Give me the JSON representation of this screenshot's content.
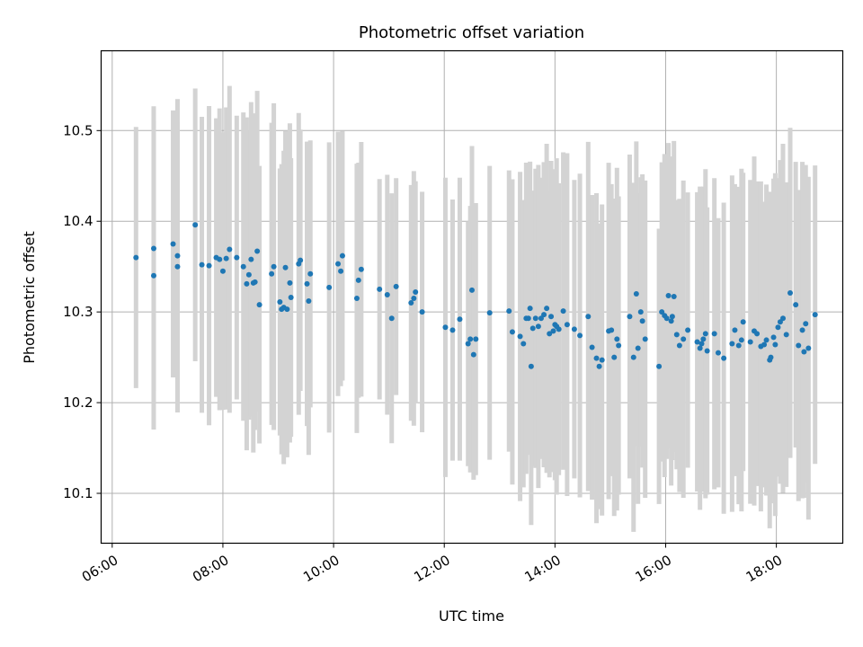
{
  "chart_data": {
    "type": "scatter",
    "title": "Photometric offset variation",
    "xlabel": "UTC time",
    "ylabel": "Photometric offset",
    "x_tick_labels": [
      "06:00",
      "08:00",
      "10:00",
      "12:00",
      "14:00",
      "16:00",
      "18:00"
    ],
    "x_ticks_hours": [
      6,
      8,
      10,
      12,
      14,
      16,
      18
    ],
    "y_ticks": [
      10.1,
      10.2,
      10.3,
      10.4,
      10.5
    ],
    "y_tick_labels": [
      "10.1",
      "10.2",
      "10.3",
      "10.4",
      "10.5"
    ],
    "xlim_hours": [
      5.8,
      19.2
    ],
    "ylim": [
      10.045,
      10.588
    ],
    "grid": true,
    "colors": {
      "points": "#1f77b4",
      "errorbars": "#d3d3d3",
      "grid": "#b0b0b0"
    },
    "series": [
      {
        "x_hours": [
          6.43,
          6.75,
          6.75,
          7.1,
          7.18,
          7.18,
          7.5,
          7.62,
          7.75,
          7.88,
          7.94,
          8.0,
          8.06,
          8.12,
          8.25,
          8.37,
          8.43,
          8.47,
          8.51,
          8.55,
          8.58,
          8.62,
          8.66,
          8.88,
          8.92,
          9.03,
          9.06,
          9.1,
          9.13,
          9.16,
          9.21,
          9.23,
          9.37,
          9.4,
          9.52,
          9.55,
          9.58,
          9.92,
          10.08,
          10.13,
          10.16,
          10.42,
          10.45,
          10.5,
          10.83,
          10.97,
          11.05,
          11.13,
          11.4,
          11.45,
          11.48,
          11.6,
          12.02,
          12.15,
          12.28,
          12.43,
          12.47,
          12.5,
          12.53,
          12.57,
          12.82,
          13.17,
          13.23,
          13.37,
          13.43,
          13.48,
          13.52,
          13.55,
          13.57,
          13.6,
          13.65,
          13.7,
          13.75,
          13.8,
          13.85,
          13.9,
          13.93,
          13.97,
          14.0,
          14.03,
          14.07,
          14.15,
          14.22,
          14.35,
          14.45,
          14.6,
          14.67,
          14.75,
          14.8,
          14.85,
          14.97,
          15.02,
          15.07,
          15.12,
          15.15,
          15.35,
          15.42,
          15.47,
          15.5,
          15.55,
          15.58,
          15.63,
          15.88,
          15.93,
          15.98,
          16.02,
          16.05,
          16.1,
          16.12,
          16.15,
          16.2,
          16.25,
          16.32,
          16.4,
          16.57,
          16.62,
          16.65,
          16.68,
          16.72,
          16.75,
          16.88,
          16.95,
          17.05,
          17.2,
          17.25,
          17.32,
          17.37,
          17.4,
          17.53,
          17.6,
          17.65,
          17.72,
          17.78,
          17.82,
          17.88,
          17.9,
          17.95,
          17.98,
          18.03,
          18.07,
          18.12,
          18.18,
          18.25,
          18.35,
          18.4,
          18.47,
          18.5,
          18.53,
          18.58,
          18.7
        ],
        "y": [
          10.36,
          10.37,
          10.34,
          10.375,
          10.35,
          10.362,
          10.396,
          10.352,
          10.351,
          10.36,
          10.358,
          10.345,
          10.359,
          10.369,
          10.36,
          10.35,
          10.331,
          10.341,
          10.358,
          10.332,
          10.333,
          10.367,
          10.308,
          10.342,
          10.35,
          10.311,
          10.303,
          10.305,
          10.349,
          10.303,
          10.332,
          10.316,
          10.353,
          10.357,
          10.331,
          10.312,
          10.342,
          10.327,
          10.353,
          10.345,
          10.362,
          10.315,
          10.335,
          10.347,
          10.325,
          10.319,
          10.293,
          10.328,
          10.31,
          10.315,
          10.322,
          10.3,
          10.283,
          10.28,
          10.292,
          10.265,
          10.27,
          10.324,
          10.253,
          10.27,
          10.299,
          10.301,
          10.278,
          10.273,
          10.265,
          10.293,
          10.293,
          10.304,
          10.24,
          10.282,
          10.293,
          10.284,
          10.293,
          10.297,
          10.304,
          10.276,
          10.295,
          10.279,
          10.286,
          10.284,
          10.281,
          10.301,
          10.286,
          10.281,
          10.274,
          10.295,
          10.261,
          10.249,
          10.24,
          10.247,
          10.279,
          10.28,
          10.25,
          10.27,
          10.263,
          10.295,
          10.25,
          10.32,
          10.26,
          10.3,
          10.29,
          10.27,
          10.24,
          10.3,
          10.296,
          10.293,
          10.318,
          10.29,
          10.295,
          10.317,
          10.275,
          10.263,
          10.27,
          10.28,
          10.267,
          10.26,
          10.265,
          10.27,
          10.276,
          10.257,
          10.276,
          10.255,
          10.249,
          10.265,
          10.28,
          10.263,
          10.269,
          10.289,
          10.267,
          10.279,
          10.276,
          10.262,
          10.264,
          10.269,
          10.247,
          10.25,
          10.272,
          10.264,
          10.283,
          10.289,
          10.293,
          10.275,
          10.321,
          10.308,
          10.263,
          10.28,
          10.256,
          10.287,
          10.26,
          10.297
        ]
      }
    ]
  }
}
